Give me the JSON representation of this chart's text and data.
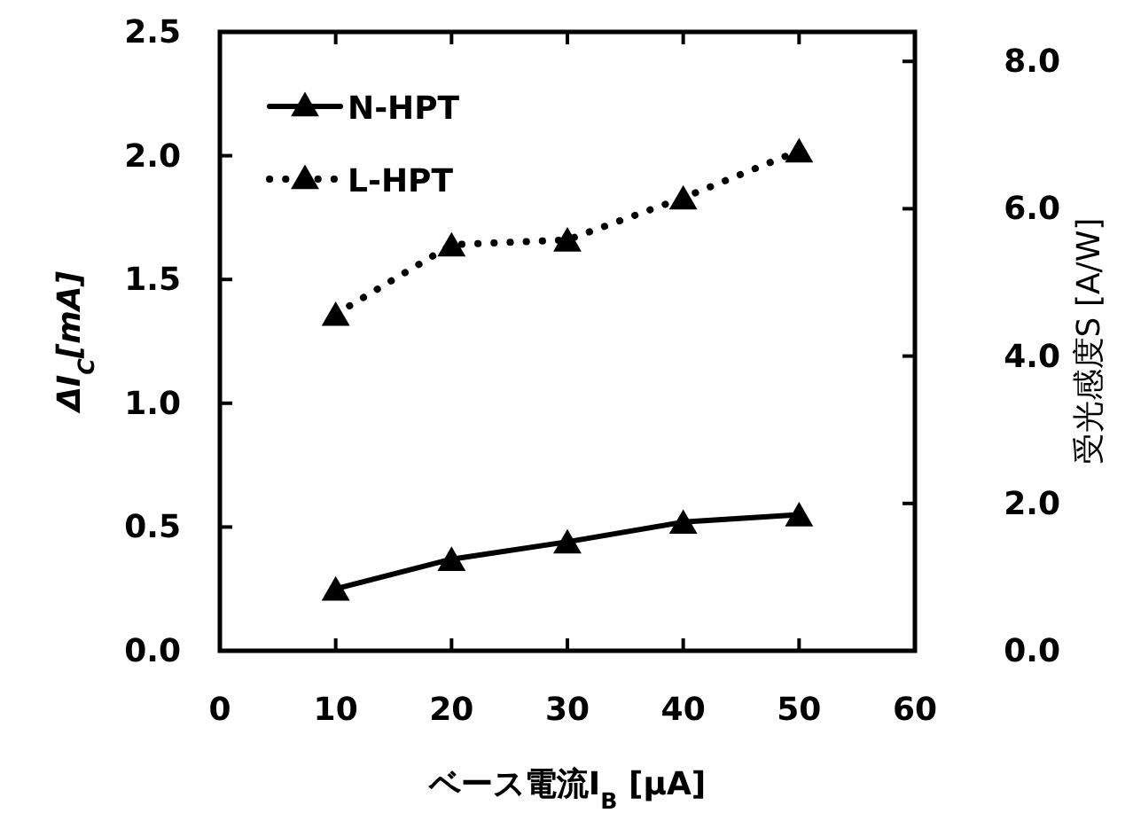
{
  "chart_data": {
    "type": "line",
    "xlabel": "ベース電流I$_{B}$ [μA]",
    "ylabel": "ΔI$_{C}$[mA]",
    "y2label": "受光感度S [A/W]",
    "x": [
      10,
      20,
      30,
      40,
      50
    ],
    "series": [
      {
        "name": "N-HPT",
        "color": "#000000",
        "line_style": "solid",
        "marker": "triangle",
        "values": [
          0.25,
          0.37,
          0.44,
          0.52,
          0.55
        ]
      },
      {
        "name": "L-HPT",
        "color": "#000000",
        "line_style": "dotted",
        "marker": "triangle",
        "values": [
          1.36,
          1.64,
          1.66,
          1.83,
          2.02
        ]
      }
    ],
    "xlim": [
      0,
      60
    ],
    "xticks": [
      0,
      10,
      20,
      30,
      40,
      50,
      60
    ],
    "ylim": [
      0,
      2.5
    ],
    "yticks": [
      {
        "value": 0,
        "label": "0.0"
      },
      {
        "value": 0.5,
        "label": "0.5"
      },
      {
        "value": 1,
        "label": "1.0"
      },
      {
        "value": 1.5,
        "label": "1.5"
      },
      {
        "value": 2,
        "label": "2.0"
      },
      {
        "value": 2.5,
        "label": "2.5"
      }
    ],
    "y2lim": [
      0,
      8.4
    ],
    "y2ticks": [
      {
        "value": 0,
        "label": "0.0"
      },
      {
        "value": 2,
        "label": "2.0"
      },
      {
        "value": 4,
        "label": "4.0"
      },
      {
        "value": 6,
        "label": "6.0"
      },
      {
        "value": 8,
        "label": "8.0"
      }
    ],
    "grid": false,
    "legend": "top left"
  }
}
